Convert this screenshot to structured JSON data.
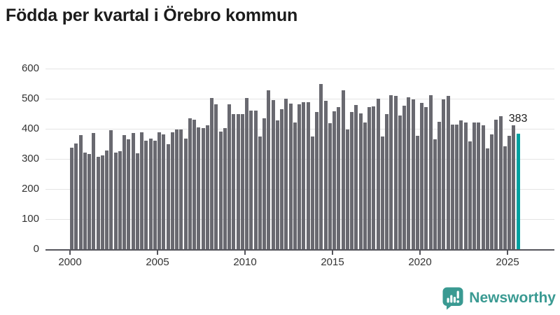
{
  "title": "Födda per kvartal i Örebro kommun",
  "footer": {
    "brand": "Newsworthy"
  },
  "colors": {
    "bar": "#696970",
    "highlight": "#00a0a0",
    "gridline": "#e4e4e4",
    "axis": "#55555c",
    "title_text": "#1c1c1c",
    "tick_label": "#333333",
    "brand_teal": "#3a9a92"
  },
  "chart_data": {
    "type": "bar",
    "title": "Födda per kvartal i Örebro kommun",
    "xlabel": "",
    "ylabel": "",
    "x_unit": "quarter",
    "first_period": "2000-Q1",
    "last_period": "2025-Q3",
    "x_tick_labels": [
      "2000",
      "2005",
      "2010",
      "2015",
      "2020",
      "2025"
    ],
    "y_ticks": [
      0,
      100,
      200,
      300,
      400,
      500,
      600
    ],
    "ylim": [
      0,
      600
    ],
    "grid": "horizontal",
    "legend": "none",
    "bar_color": "#696970",
    "highlight": {
      "period": "2025-Q3",
      "index": 102,
      "value": 383,
      "label": "383",
      "color": "#00a0a0"
    },
    "values": [
      337,
      352,
      378,
      322,
      316,
      385,
      307,
      311,
      328,
      395,
      322,
      325,
      380,
      365,
      385,
      318,
      389,
      361,
      368,
      361,
      389,
      382,
      349,
      388,
      397,
      397,
      368,
      435,
      430,
      405,
      402,
      412,
      503,
      481,
      390,
      402,
      482,
      448,
      450,
      448,
      502,
      461,
      461,
      374,
      435,
      529,
      495,
      428,
      465,
      499,
      484,
      420,
      482,
      489,
      489,
      374,
      457,
      548,
      492,
      419,
      459,
      472,
      529,
      397,
      457,
      478,
      451,
      422,
      472,
      475,
      499,
      374,
      449,
      512,
      509,
      445,
      476,
      505,
      497,
      376,
      485,
      472,
      512,
      366,
      424,
      497,
      509,
      415,
      415,
      428,
      422,
      359,
      420,
      422,
      412,
      335,
      382,
      430,
      443,
      341,
      376,
      412,
      383
    ]
  }
}
